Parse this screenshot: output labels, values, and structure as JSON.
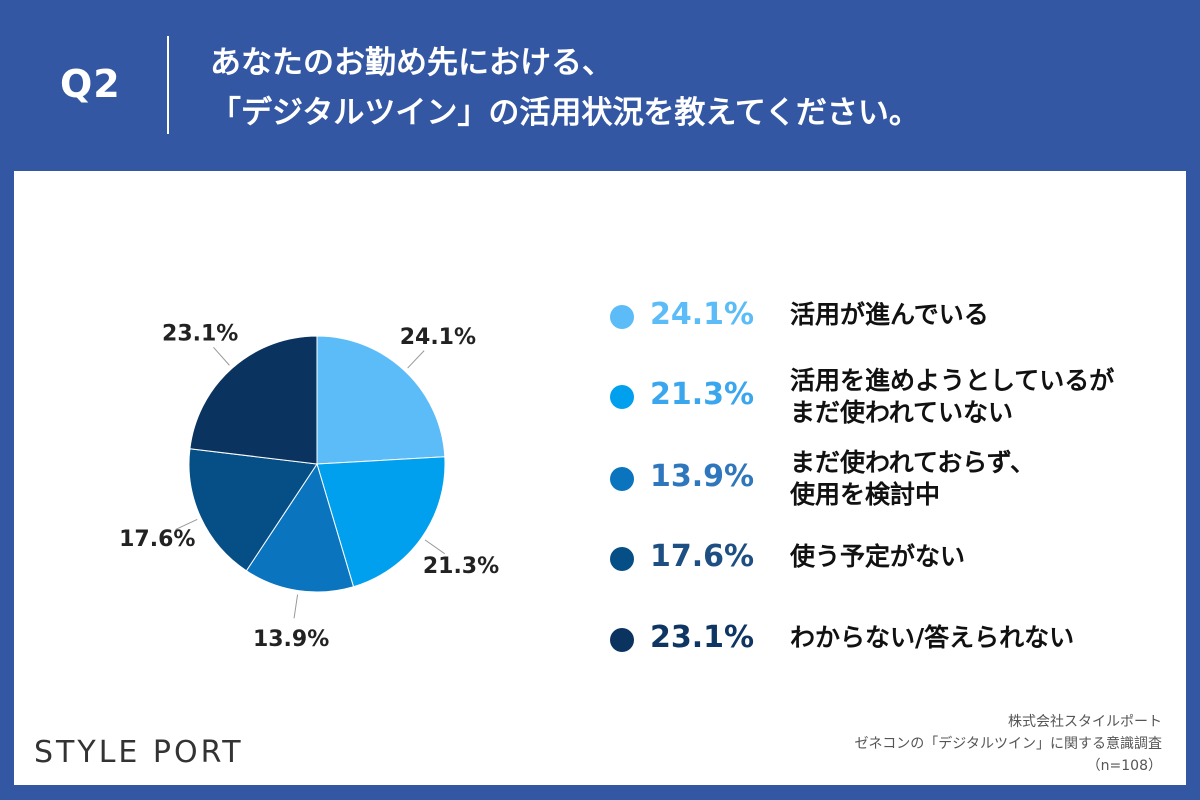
{
  "header": {
    "question_no": "Q2",
    "title_lines": [
      "あなたのお勤め先における、",
      "「デジタルツイン」の活用状況を教えてください。"
    ]
  },
  "chart_data": {
    "type": "pie",
    "title": "",
    "slices": [
      {
        "label_lines": [
          "活用が進んでいる"
        ],
        "value": 24.1,
        "value_text": "24.1%",
        "color": "#5bbcf7"
      },
      {
        "label_lines": [
          "活用を進めようとしているが",
          "まだ使われていない"
        ],
        "value": 21.3,
        "value_text": "21.3%",
        "color": "#00a0ef"
      },
      {
        "label_lines": [
          "まだ使われておらず、",
          "使用を検討中"
        ],
        "value": 13.9,
        "value_text": "13.9%",
        "color": "#0a74bf"
      },
      {
        "label_lines": [
          "使う予定がない"
        ],
        "value": 17.6,
        "value_text": "17.6%",
        "color": "#064f86"
      },
      {
        "label_lines": [
          "わからない/答えられない"
        ],
        "value": 23.1,
        "value_text": "23.1%",
        "color": "#0b3360"
      }
    ],
    "legend_pct_colors": [
      "#5bbcf7",
      "#3aa6ee",
      "#2f77bd",
      "#1e4f83",
      "#0f3563"
    ],
    "legend_position": "right"
  },
  "footer": {
    "logo_text": "STYLE PORT",
    "source_lines": [
      "株式会社スタイルポート",
      "ゼネコンの「デジタルツイン」に関する意識調査",
      "（n=108）"
    ]
  }
}
